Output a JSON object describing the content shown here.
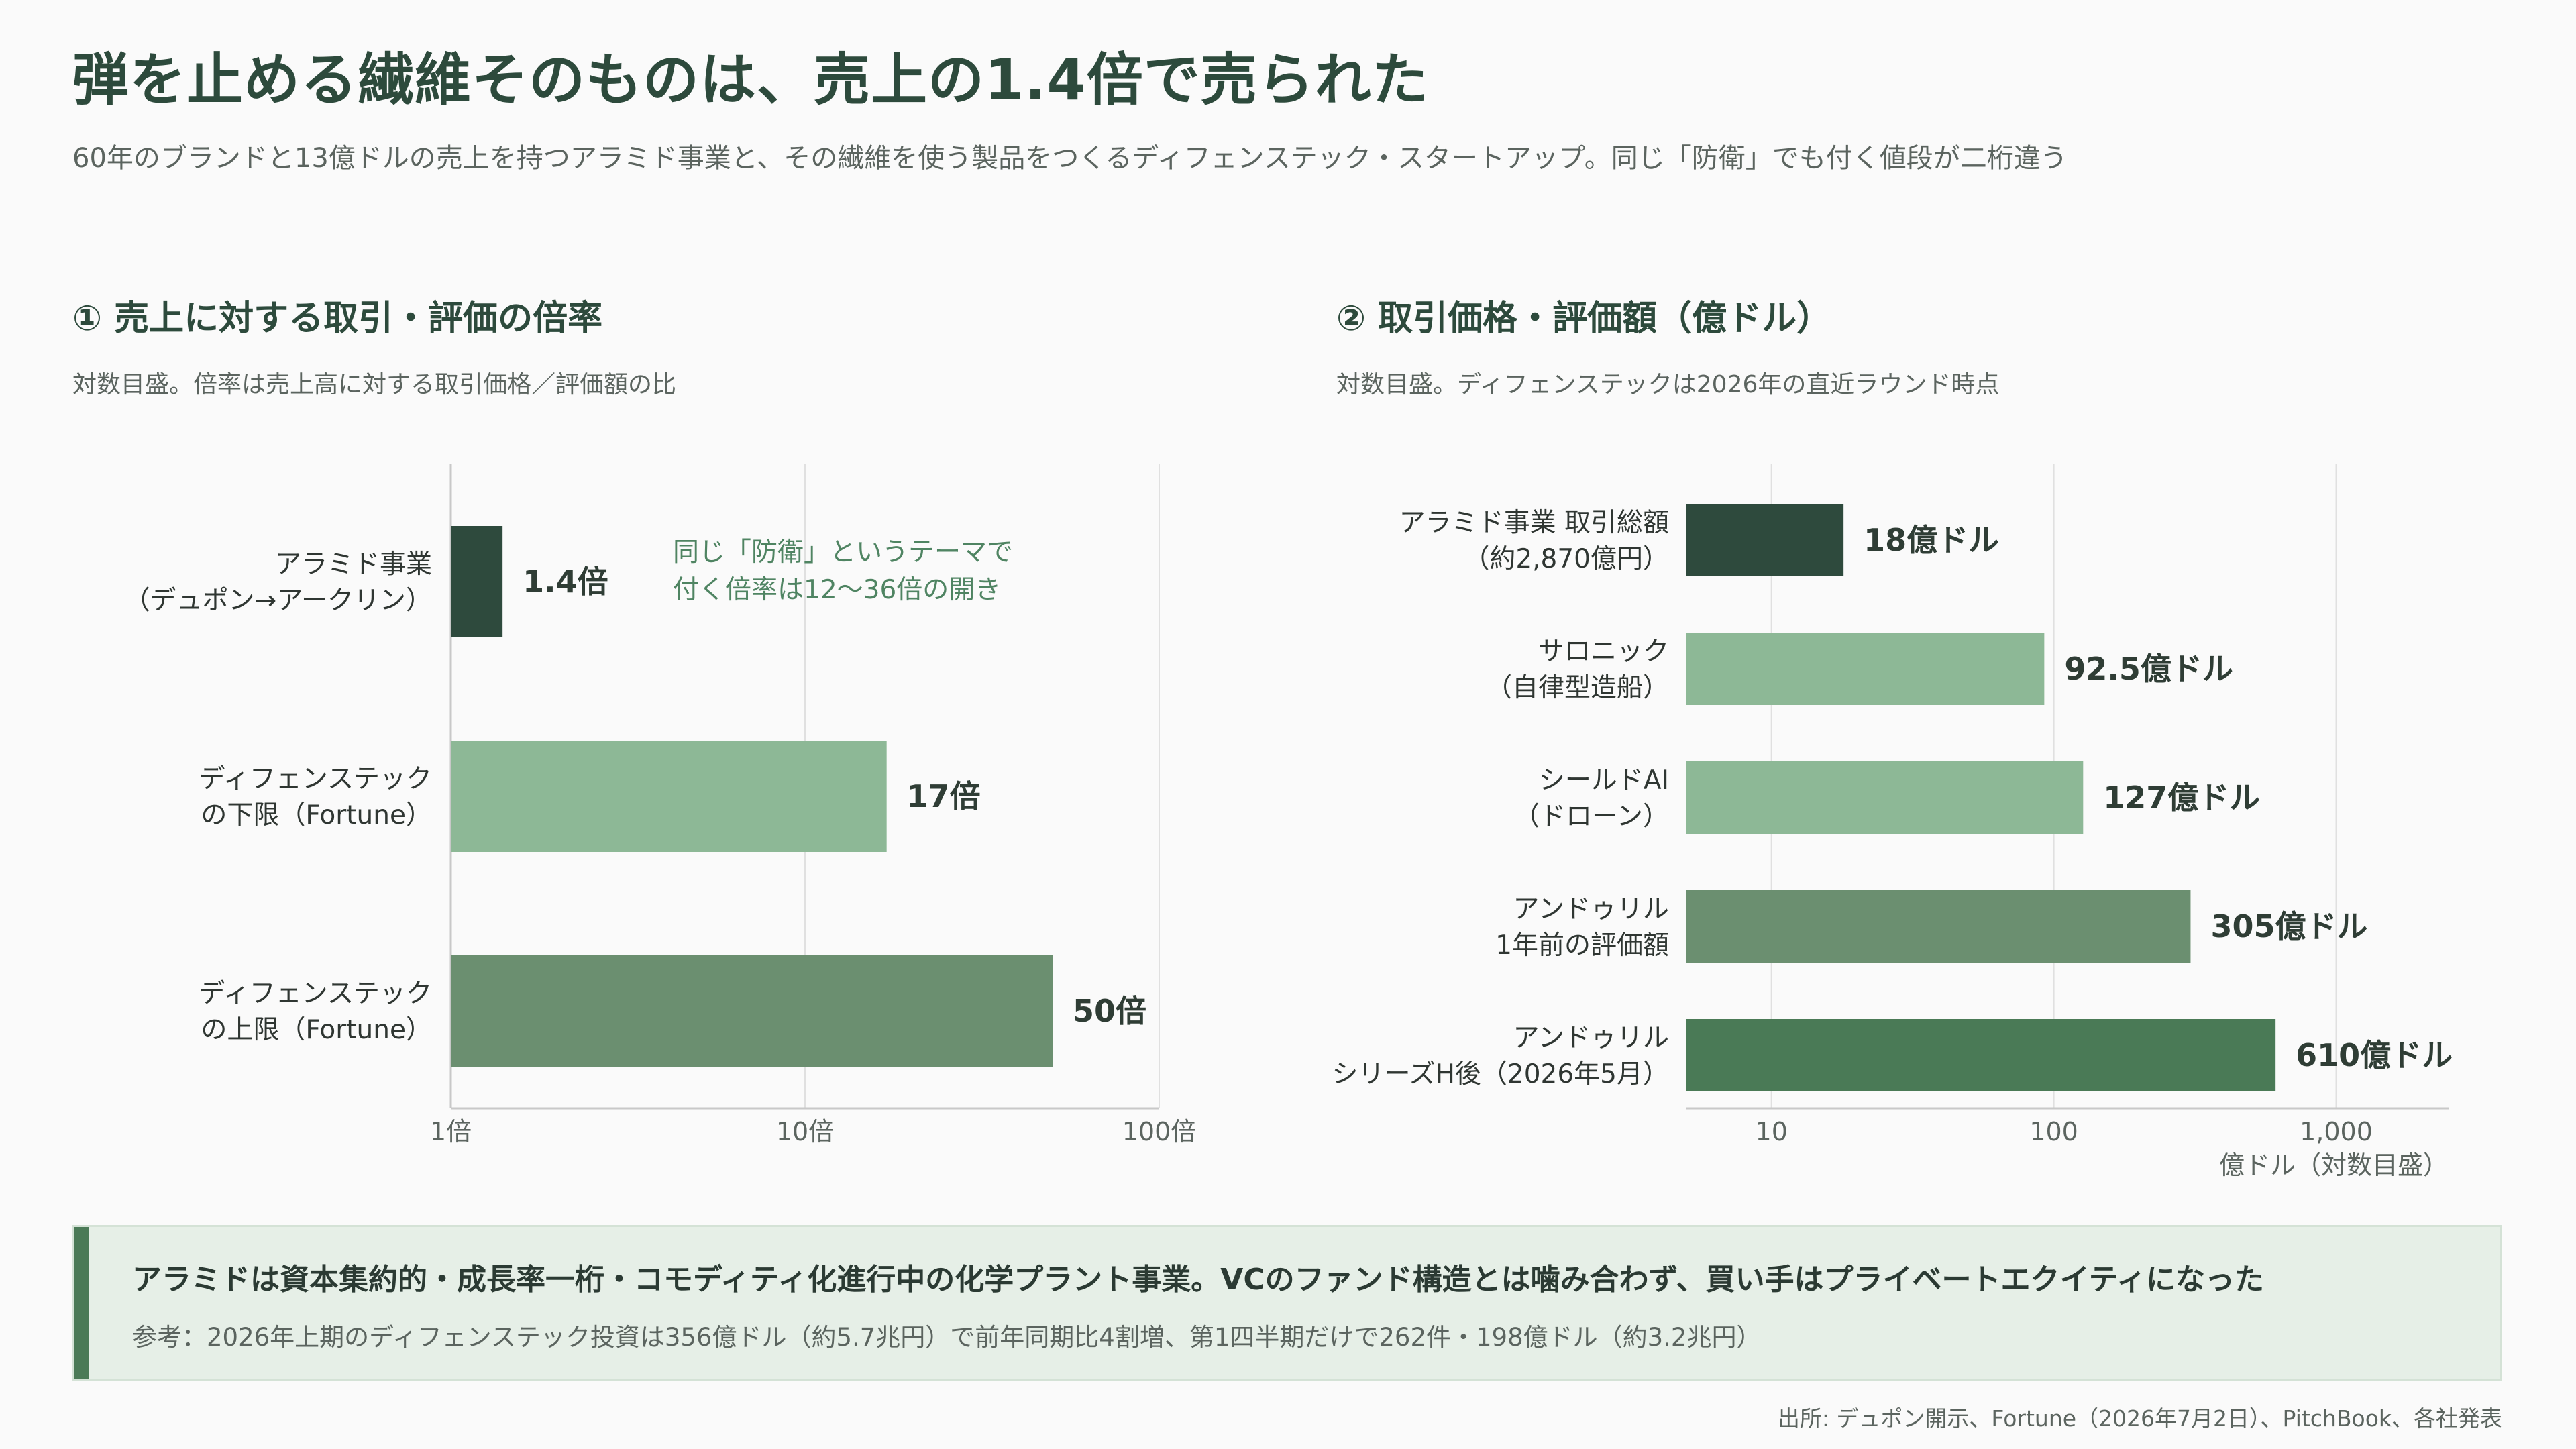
{
  "title": "弾を止める繊維そのものは、売上の1.4倍で売られた",
  "subtitle": "60年のブランドと13億ドルの売上を持つアラミド事業と、その繊維を使う製品をつくるディフェンステック・スタートアップ。同じ「防衛」でも付く値段が二桁違う",
  "panel1": {
    "title": "① 売上に対する取引・評価の倍率",
    "note": "対数目盛。倍率は売上高に対する取引価格／評価額の比",
    "annotation": [
      "同じ「防衛」というテーマで",
      "付く倍率は12〜36倍の開き"
    ]
  },
  "panel2": {
    "title": "② 取引価格・評価額（億ドル）",
    "note": "対数目盛。ディフェンステックは2026年の直近ラウンド時点",
    "axis_unit": "億ドル（対数目盛）"
  },
  "chart_data": [
    {
      "type": "bar",
      "orientation": "horizontal",
      "scale": "log",
      "xlim": [
        1,
        100
      ],
      "ticks": [
        {
          "value": 1,
          "label": "1倍"
        },
        {
          "value": 10,
          "label": "10倍"
        },
        {
          "value": 100,
          "label": "100倍"
        }
      ],
      "grid": true,
      "bars": [
        {
          "label": [
            "アラミド事業",
            "（デュポン→アークリン）"
          ],
          "value": 1.4,
          "value_label": "1.4倍",
          "color": "#2e4a3d"
        },
        {
          "label": [
            "ディフェンステック",
            "の下限（Fortune）"
          ],
          "value": 17,
          "value_label": "17倍",
          "color": "#8db896"
        },
        {
          "label": [
            "ディフェンステック",
            "の上限（Fortune）"
          ],
          "value": 50,
          "value_label": "50倍",
          "color": "#6b8f70"
        }
      ]
    },
    {
      "type": "bar",
      "orientation": "horizontal",
      "scale": "log",
      "xlim": [
        5,
        2500
      ],
      "ticks": [
        {
          "value": 10,
          "label": "10"
        },
        {
          "value": 100,
          "label": "100"
        },
        {
          "value": 1000,
          "label": "1,000"
        }
      ],
      "grid": true,
      "bars": [
        {
          "label": [
            "アラミド事業 取引総額",
            "（約2,870億円）"
          ],
          "value": 18,
          "value_label": "18億ドル",
          "color": "#2e4a3d"
        },
        {
          "label": [
            "サロニック",
            "（自律型造船）"
          ],
          "value": 92.5,
          "value_label": "92.5億ドル",
          "color": "#8db896"
        },
        {
          "label": [
            "シールドAI",
            "（ドローン）"
          ],
          "value": 127,
          "value_label": "127億ドル",
          "color": "#8db896"
        },
        {
          "label": [
            "アンドゥリル",
            "1年前の評価額"
          ],
          "value": 305,
          "value_label": "305億ドル",
          "color": "#6b8f70"
        },
        {
          "label": [
            "アンドゥリル",
            "シリーズH後（2026年5月）"
          ],
          "value": 610,
          "value_label": "610億ドル",
          "color": "#4a7a56"
        }
      ]
    }
  ],
  "callout": {
    "main": "アラミドは資本集約的・成長率一桁・コモディティ化進行中の化学プラント事業。VCのファンド構造とは噛み合わず、買い手はプライベートエクイティになった",
    "ref": "参考：2026年上期のディフェンステック投資は356億ドル（約5.7兆円）で前年同期比4割増、第1四半期だけで262件・198億ドル（約3.2兆円）"
  },
  "source": "出所: デュポン開示、Fortune（2026年7月2日）、PitchBook、各社発表"
}
